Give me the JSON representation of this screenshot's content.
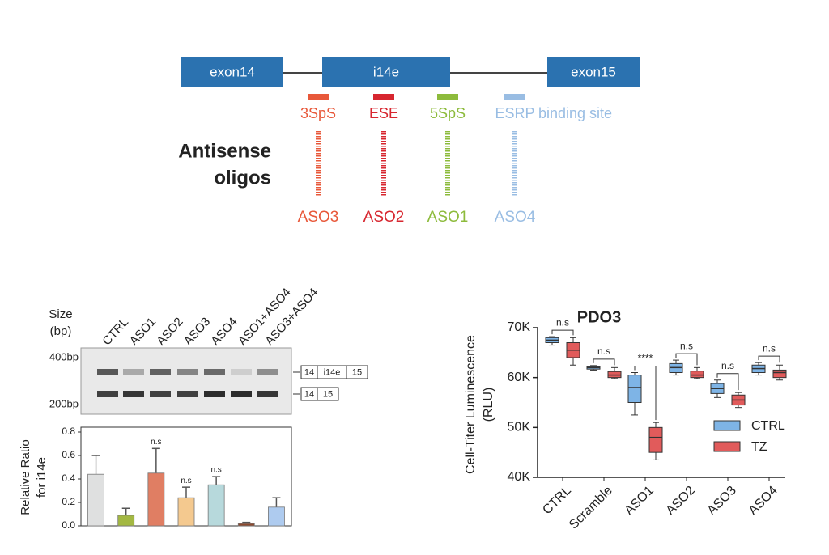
{
  "diagram": {
    "exons": [
      "exon14",
      "i14e",
      "exon15"
    ],
    "exon_color": "#2b72b0",
    "sites": [
      {
        "label": "3SpS",
        "color": "#e8583a"
      },
      {
        "label": "ESE",
        "color": "#d7262f"
      },
      {
        "label": "5SpS",
        "color": "#8dbb3c"
      },
      {
        "label": "ESRP",
        "color": "#99bde3"
      }
    ],
    "site_suffix": "binding site",
    "aso_title": [
      "Antisense",
      "oligos"
    ],
    "asos": [
      "ASO3",
      "ASO2",
      "ASO1",
      "ASO4"
    ]
  },
  "gel": {
    "size_label": [
      "Size",
      "(bp)"
    ],
    "lanes": [
      "CTRL",
      "ASO1",
      "ASO2",
      "ASO3",
      "ASO4",
      "ASO1+ASO4",
      "ASO3+ASO4"
    ],
    "markers": [
      "400bp",
      "200bp"
    ],
    "band_labels": [
      [
        "14",
        "i14e",
        "15"
      ],
      [
        "14",
        "15"
      ]
    ]
  },
  "chart_data": [
    {
      "type": "bar",
      "ylabel": [
        "Relative Ratio",
        "for i14e"
      ],
      "values": [
        0.44,
        0.09,
        0.45,
        0.24,
        0.35,
        0.02,
        0.16
      ],
      "errors": [
        0.16,
        0.06,
        0.21,
        0.09,
        0.07,
        0.01,
        0.08
      ],
      "colors": [
        "#dfe0e0",
        "#a3b842",
        "#e07e63",
        "#f4c98f",
        "#b7d9dc",
        "#8d4a2f",
        "#aecbef"
      ],
      "annotations": [
        null,
        null,
        "n.s",
        "n.s",
        "n.s",
        null,
        null
      ],
      "ylim": [
        0,
        0.8
      ],
      "yticks": [
        {
          "value": 0,
          "label": "0.0"
        },
        0.2,
        0.4,
        0.6,
        0.8
      ]
    },
    {
      "type": "box",
      "title": "PDO3",
      "ylabel": [
        "Cell-Titer Luminescence",
        "(RLU)"
      ],
      "categories": [
        "CTRL",
        "Scramble",
        "ASO1",
        "ASO2",
        "ASO3",
        "ASO4"
      ],
      "series": [
        {
          "name": "CTRL",
          "color": "#7eb4e6",
          "values": [
            [
              66500,
              67000,
              67500,
              68000,
              68200
            ],
            [
              61500,
              61700,
              62000,
              62200,
              62400
            ],
            [
              52500,
              55000,
              58000,
              60500,
              61000
            ],
            [
              60500,
              61000,
              62000,
              62800,
              63500
            ],
            [
              56000,
              56800,
              57800,
              58800,
              59500
            ],
            [
              60500,
              61000,
              61800,
              62500,
              63000
            ]
          ]
        },
        {
          "name": "TZ",
          "color": "#e15b5b",
          "values": [
            [
              62500,
              64000,
              65500,
              67000,
              68000
            ],
            [
              59800,
              60000,
              60500,
              61200,
              62000
            ],
            [
              43500,
              45000,
              48000,
              50000,
              51000
            ],
            [
              59800,
              60000,
              60500,
              61300,
              62000
            ],
            [
              54000,
              54500,
              55500,
              56500,
              57000
            ],
            [
              59500,
              60000,
              61000,
              61500,
              62500
            ]
          ]
        }
      ],
      "annotations": [
        "n.s",
        "n.s",
        "****",
        "n.s",
        "n.s",
        "n.s"
      ],
      "ylim": [
        40000,
        70000
      ],
      "yticks": [
        {
          "value": 40000,
          "label": "40K"
        },
        {
          "value": 50000,
          "label": "50K"
        },
        {
          "value": 60000,
          "label": "60K"
        },
        {
          "value": 70000,
          "label": "70K"
        }
      ]
    }
  ]
}
